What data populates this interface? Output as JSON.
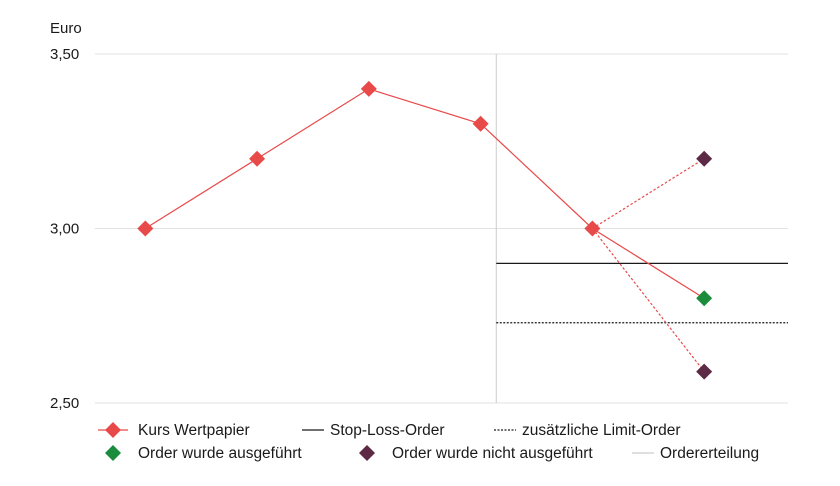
{
  "chart_data": {
    "type": "line",
    "ylabel": "Euro",
    "ylim": [
      2.5,
      3.5
    ],
    "yticks": [
      {
        "value": 3.5,
        "label": "3,50"
      },
      {
        "value": 3.0,
        "label": "3,00"
      },
      {
        "value": 2.5,
        "label": "2,50"
      }
    ],
    "x": [
      1,
      2,
      3,
      4,
      5,
      6
    ],
    "xlim": [
      0.55,
      6.75
    ],
    "series": [
      {
        "name": "Kurs Wertpapier",
        "x": [
          1,
          2,
          3,
          4,
          5,
          6
        ],
        "values": [
          3.0,
          3.2,
          3.4,
          3.3,
          3.0,
          2.8
        ],
        "color": "#e84a4a"
      }
    ],
    "scenarios": [
      {
        "x": [
          5,
          6
        ],
        "values": [
          3.0,
          3.2
        ],
        "style": "dotted",
        "color": "#e84a4a"
      },
      {
        "x": [
          5,
          6
        ],
        "values": [
          3.0,
          2.59
        ],
        "style": "dotted",
        "color": "#e84a4a"
      }
    ],
    "outcome_points": [
      {
        "x": 6,
        "value": 2.8,
        "status": "executed",
        "color": "#1a8c3c"
      },
      {
        "x": 6,
        "value": 3.2,
        "status": "not_executed",
        "color": "#5c2a44"
      },
      {
        "x": 6,
        "value": 2.59,
        "status": "not_executed",
        "color": "#5c2a44"
      }
    ],
    "stop_loss": {
      "value": 2.9,
      "x_start": 4.14,
      "color": "#1a1a1a"
    },
    "limit_order": {
      "value": 2.73,
      "x_start": 4.14,
      "color": "#1a1a1a"
    },
    "order_placement_x": 4.14,
    "grid": true,
    "legend_position": "bottom",
    "legend": [
      {
        "label": "Kurs Wertpapier",
        "symbol": "line-diamond",
        "color": "#e84a4a"
      },
      {
        "label": "Stop-Loss-Order",
        "symbol": "line",
        "color": "#1a1a1a"
      },
      {
        "label": "zusätzliche Limit-Order",
        "symbol": "dotted-line",
        "color": "#1a1a1a"
      },
      {
        "label": "Order wurde ausgeführt",
        "symbol": "diamond",
        "color": "#1a8c3c"
      },
      {
        "label": "Order wurde nicht ausgeführt",
        "symbol": "diamond",
        "color": "#5c2a44"
      },
      {
        "label": "Ordererteilung",
        "symbol": "line",
        "color": "#cccccc"
      }
    ]
  }
}
